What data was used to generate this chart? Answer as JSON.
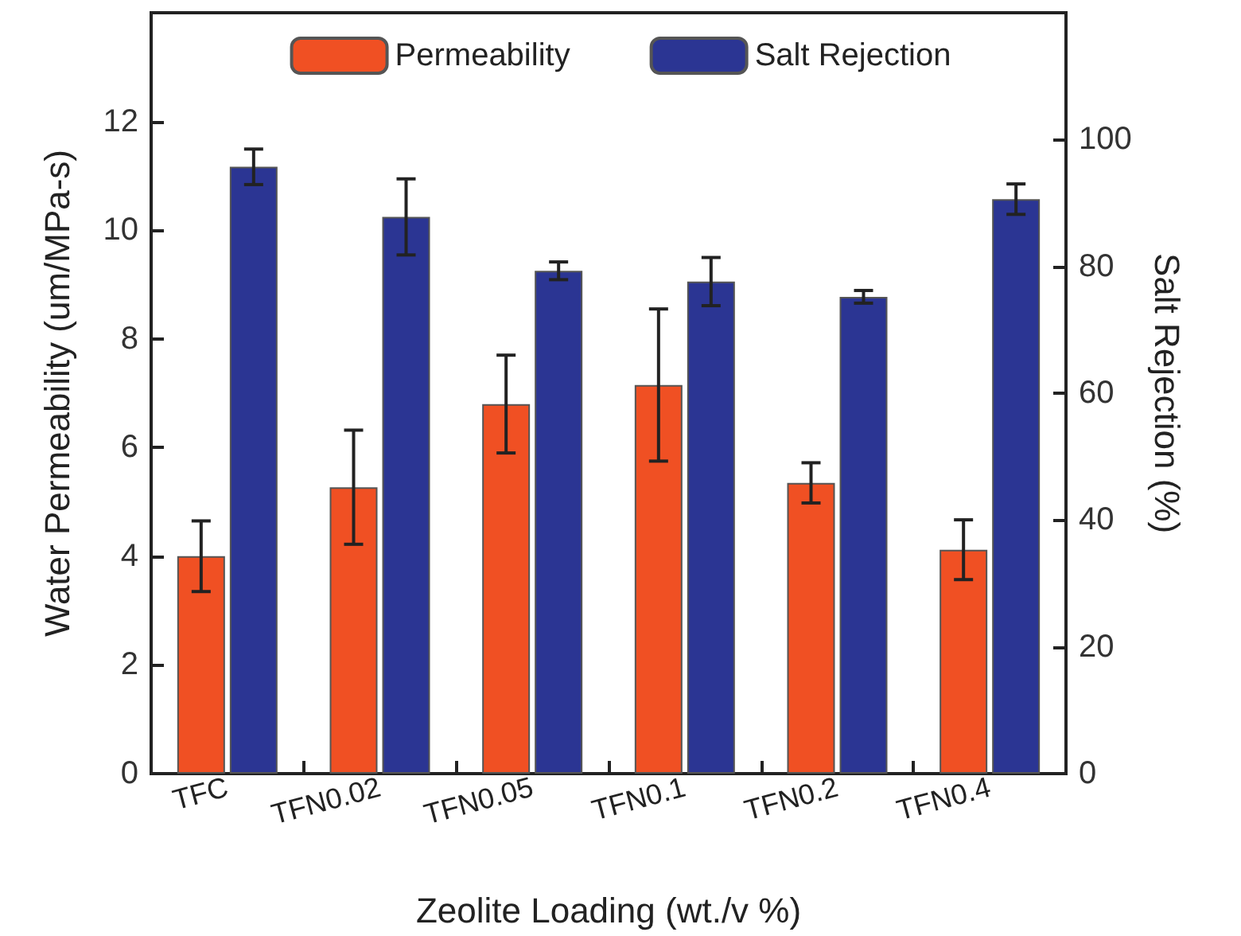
{
  "chart_data": {
    "type": "bar",
    "xlabel": "Zeolite Loading (wt./v %)",
    "ylabel": "Water Permeability (um/MPa-s)",
    "y2label": "Salt Rejection (%)",
    "categories": [
      "TFC",
      "TFN0.02",
      "TFN0.05",
      "TFN0.1",
      "TFN0.2",
      "TFN0.4"
    ],
    "series": [
      {
        "name": "Permeability",
        "color": "#f05023",
        "values": [
          4.0,
          5.27,
          6.8,
          7.15,
          5.35,
          4.12
        ],
        "errors": [
          0.65,
          1.05,
          0.9,
          1.4,
          0.37,
          0.55
        ]
      },
      {
        "name": "Salt Rejection",
        "color": "#2b3593",
        "axis": "y2",
        "values": [
          95.7,
          87.8,
          79.3,
          77.6,
          75.2,
          90.6
        ],
        "errors": [
          2.8,
          6,
          1.4,
          3.8,
          1,
          2.4
        ]
      }
    ],
    "ylim": [
      0,
      14
    ],
    "yticks": [
      0,
      2,
      4,
      6,
      8,
      10,
      12
    ],
    "y2lim": [
      0,
      120
    ],
    "y2ticks": [
      0,
      20,
      40,
      60,
      80,
      100
    ],
    "legend": "top",
    "grid": false
  }
}
